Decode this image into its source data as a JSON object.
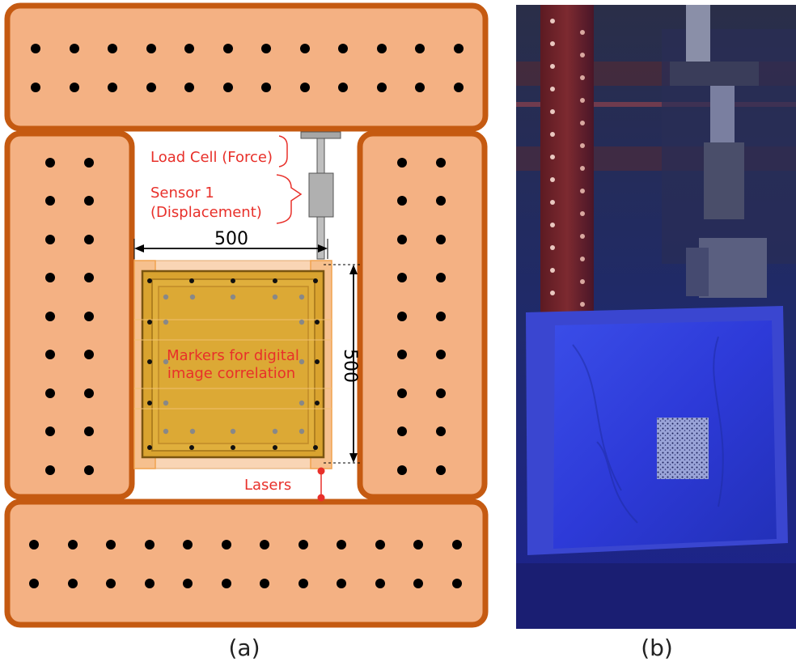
{
  "figure": {
    "panel_a": {
      "caption": "(a)",
      "labels": {
        "load_cell": "Load Cell (Force)",
        "sensor_line1": "Sensor 1",
        "sensor_line2": "(Displacement)",
        "width_dim": "500",
        "height_dim": "500",
        "markers_line1": "Markers for digital",
        "markers_line2": "image correlation",
        "lasers": "Lasers"
      },
      "colors": {
        "frame_fill": "#f4b183",
        "frame_stroke": "#c55a11",
        "panel_fill": "#d9a32f",
        "sheathing": "#f8cba3",
        "annotation_red": "#e8302a",
        "bolt": "#000000",
        "dic_marker": "#888888"
      }
    },
    "panel_b": {
      "caption": "(b)",
      "colors": {
        "lighting": "#2a35d6",
        "column": "#8a2418"
      }
    }
  }
}
